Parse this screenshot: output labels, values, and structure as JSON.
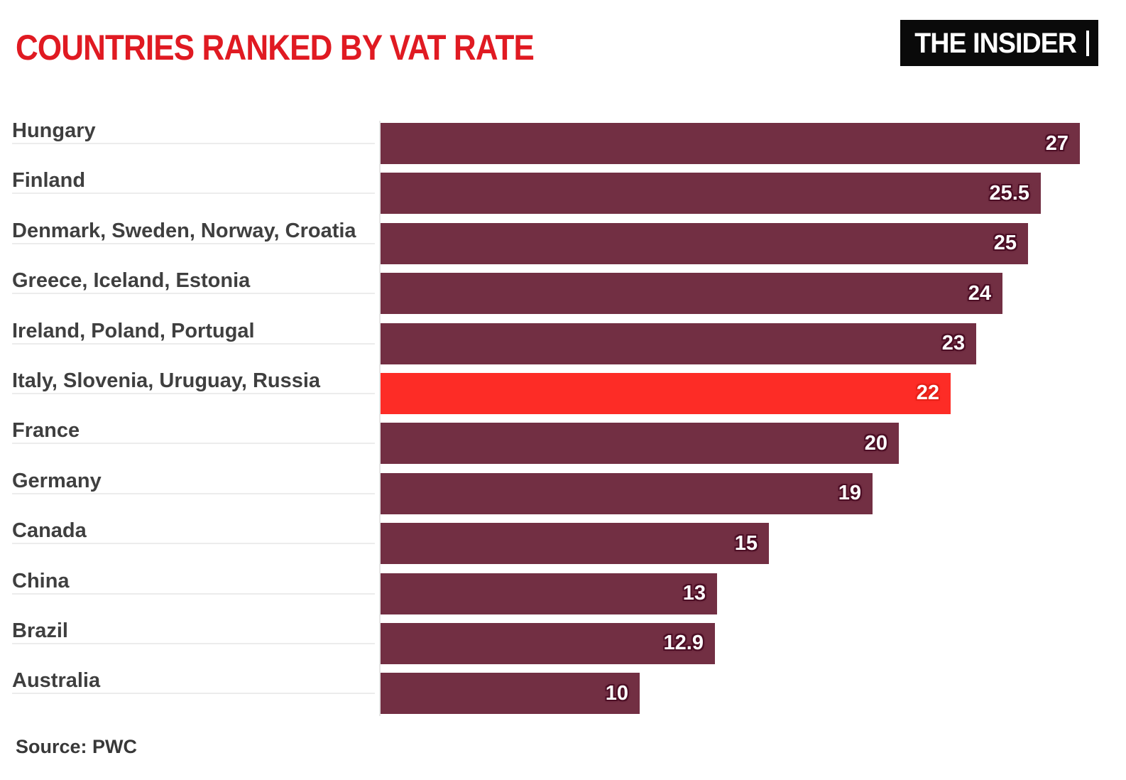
{
  "header": {
    "title": "COUNTRIES RANKED BY VAT RATE",
    "logo_text": "THE INSIDER"
  },
  "footer": {
    "source": "Source: PWC"
  },
  "colors": {
    "title": "#e01a22",
    "bar": "#722f43",
    "bar_highlight": "#fd2c26",
    "value_halo": "#4c0e25",
    "value_halo_highlight": "#e62118",
    "category_text": "#3f3f3f",
    "underline": "#ececec",
    "axis_line": "#e6e6e6",
    "logo_bg": "#0a0a0a",
    "logo_text": "#ffffff",
    "source_text": "#383838"
  },
  "chart_data": {
    "type": "bar",
    "orientation": "horizontal",
    "title": "COUNTRIES RANKED BY VAT RATE",
    "source": "Source: PWC",
    "xlim": [
      0,
      27
    ],
    "grid": false,
    "legend": false,
    "categories": [
      "Hungary",
      "Finland",
      "Denmark, Sweden, Norway, Croatia",
      "Greece, Iceland, Estonia",
      "Ireland, Poland, Portugal",
      "Italy, Slovenia, Uruguay, Russia",
      "France",
      "Germany",
      "Canada",
      "China",
      "Brazil",
      "Australia"
    ],
    "values": [
      27,
      25.5,
      25,
      24,
      23,
      22,
      20,
      19,
      15,
      13,
      12.9,
      10
    ],
    "value_labels": [
      "27",
      "25.5",
      "25",
      "24",
      "23",
      "22",
      "20",
      "19",
      "15",
      "13",
      "12.9",
      "10"
    ],
    "highlighted_index": 5,
    "highlighted_category": "Italy, Slovenia, Uruguay, Russia"
  }
}
